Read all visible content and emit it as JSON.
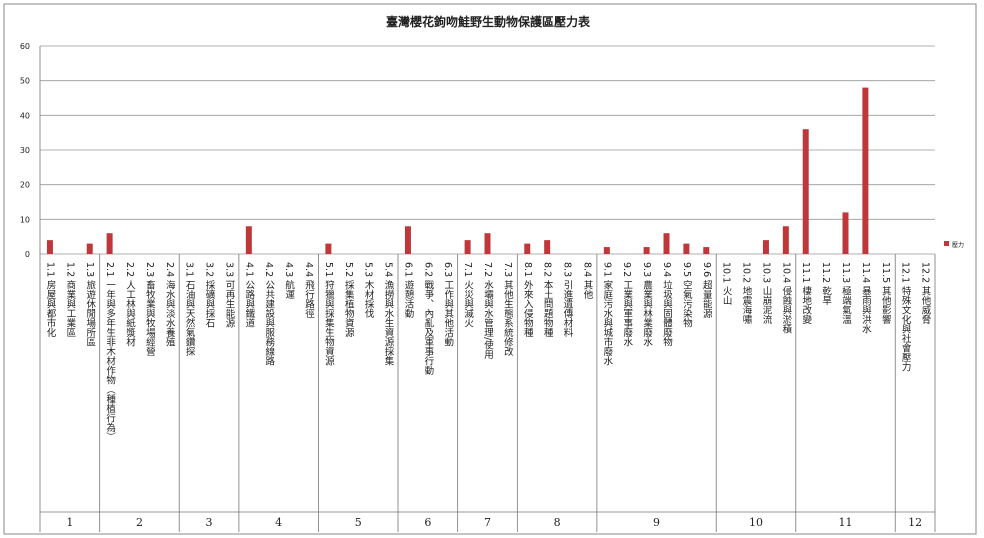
{
  "chart_data": {
    "type": "bar",
    "title": "臺灣櫻花鉤吻鮭野生動物保護區壓力表",
    "categories": [
      "1.1 房屋與都市化",
      "1.2 商業與工業區",
      "1.3 旅遊休閒場所區",
      "2.1 一年與多年生非木材作物（種植行為）",
      "2.2 人工林與紙漿材",
      "2.3 畜牧業與牧場經營",
      "2.4 海水與淡水養殖",
      "3.1 石油與天然氣鑽探",
      "3.2 採礦與採石",
      "3.3 可再生能源",
      "4.1 公路與鐵道",
      "4.2 公共建設與服務線路",
      "4.3 航運",
      "4.4 飛行路徑",
      "5.1 狩獵與採集生物資源",
      "5.2 採集植物資源",
      "5.3 木材採伐",
      "5.4 漁撈與水生資源採集",
      "6.1 遊憩活動",
      "6.2 戰爭、內亂及軍事行動",
      "6.3 工作與其他活動",
      "7.1 火災與滅火",
      "7.2 水壩與水管理/使用",
      "7.3 其他生態系統修改",
      "8.1 外來入侵物種",
      "8.2 本土問題物種",
      "8.3 引進遺傳材料",
      "8.4 其他",
      "9.1 家庭污水與城市廢水",
      "9.2 工業與軍事廢水",
      "9.3 農業與林業廢水",
      "9.4 垃圾與固體廢物",
      "9.5 空氣污染物",
      "9.6 超量能源",
      "10.1 火山",
      "10.2 地震海嘯",
      "10.3 山崩泥流",
      "10.4 侵蝕與淤積",
      "11.1 棲地改變",
      "11.2 乾旱",
      "11.3 極端氣溫",
      "11.4 暴雨與洪水",
      "11.5 其他影響",
      "12.1 特殊文化與社會壓力",
      "12.2 其他威脅"
    ],
    "groups": [
      "1",
      "2",
      "3",
      "4",
      "5",
      "6",
      "7",
      "8",
      "9",
      "10",
      "11",
      "12"
    ],
    "series": [
      {
        "name": "壓力",
        "color": "#c0373a",
        "values": [
          4,
          0,
          3,
          6,
          0,
          0,
          0,
          0,
          0,
          0,
          8,
          0,
          0,
          0,
          3,
          0,
          0,
          0,
          8,
          0,
          0,
          4,
          6,
          0,
          3,
          4,
          0,
          0,
          2,
          0,
          2,
          6,
          3,
          2,
          0,
          0,
          4,
          8,
          36,
          0,
          12,
          48,
          0,
          0,
          0
        ]
      }
    ],
    "ylim": [
      0,
      60
    ],
    "yticks": [
      0,
      10,
      20,
      30,
      40,
      50,
      60
    ],
    "grid": true,
    "legend": "right"
  }
}
